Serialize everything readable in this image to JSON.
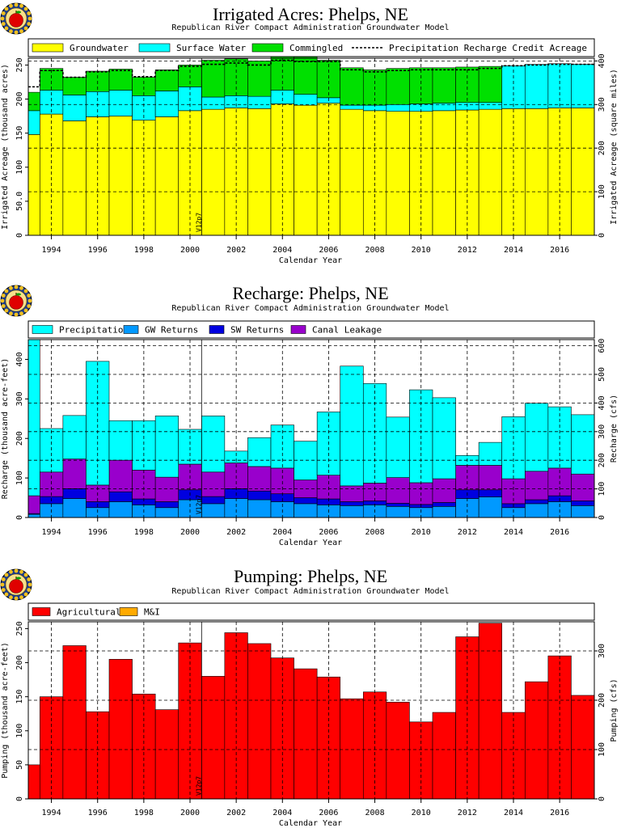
{
  "colors": {
    "groundwater": "#ffff00",
    "surface_water": "#00ffff",
    "commingled": "#00e000",
    "precipitation": "#00ffff",
    "gw_returns": "#0099ff",
    "sw_returns": "#0000e0",
    "canal_leakage": "#9900cc",
    "agricultural": "#ff0000",
    "mi": "#ffaa00"
  },
  "marker_label": "V12p7",
  "chart_data": [
    {
      "type": "area",
      "title": "Irrigated Acres: Phelps, NE",
      "subtitle": "Republican River Compact Administration Groundwater Model",
      "xlabel": "Calendar Year",
      "ylabel": "Irrigated Acreage (thousand acres)",
      "y2label": "Irrigated Acreage (square miles)",
      "xlim": [
        1993,
        2017.5
      ],
      "ylim": [
        0,
        260
      ],
      "y2lim": [
        0,
        406.25
      ],
      "xticks": [
        "1994",
        "1996",
        "1998",
        "2000",
        "2002",
        "2004",
        "2006",
        "2008",
        "2010",
        "2012",
        "2014",
        "2016"
      ],
      "yticks": [
        "0",
        "50.0",
        "100",
        "150",
        "200",
        "250"
      ],
      "y2ticks": [
        "0",
        "100",
        "200",
        "300",
        "400"
      ],
      "grid": true,
      "legend_position": "top",
      "stacked": true,
      "marker_year": 2000.5,
      "years": [
        1993,
        1994,
        1995,
        1996,
        1997,
        1998,
        1999,
        2000,
        2001,
        2002,
        2003,
        2004,
        2005,
        2006,
        2007,
        2008,
        2009,
        2010,
        2011,
        2012,
        2013,
        2014,
        2015,
        2016,
        2017
      ],
      "series": [
        {
          "name": "Groundwater",
          "key": "groundwater",
          "values": [
            148,
            178,
            168,
            174,
            175,
            169,
            174,
            183,
            185,
            187,
            186,
            193,
            191,
            194,
            185,
            183,
            182,
            182,
            183,
            184,
            185,
            186,
            186,
            187,
            187
          ]
        },
        {
          "name": "Surface Water",
          "key": "surface_water",
          "values": [
            35,
            35,
            38,
            37,
            38,
            36,
            38,
            35,
            18,
            18,
            18,
            20,
            16,
            8,
            6,
            8,
            10,
            11,
            11,
            11,
            10,
            63,
            65,
            65,
            64
          ]
        },
        {
          "name": "Commingled",
          "key": "commingled",
          "values": [
            27,
            32,
            26,
            30,
            31,
            27,
            31,
            32,
            54,
            54,
            52,
            52,
            55,
            55,
            55,
            52,
            53,
            53,
            52,
            52,
            53,
            0,
            0,
            0,
            0
          ]
        }
      ],
      "line": {
        "name": "Precipitation Recharge Credit Acreage",
        "values": [
          218,
          242,
          232,
          240,
          242,
          233,
          242,
          248,
          251,
          253,
          250,
          257,
          255,
          255,
          243,
          240,
          242,
          243,
          243,
          243,
          245,
          249,
          250,
          251,
          251
        ]
      }
    },
    {
      "type": "area",
      "title": "Recharge: Phelps, NE",
      "subtitle": "Republican River Compact Administration Groundwater Model",
      "xlabel": "Calendar Year",
      "ylabel": "Recharge (thousand acre-feet)",
      "y2label": "Recharge (cfs)",
      "xlim": [
        1993,
        2017.5
      ],
      "ylim": [
        0,
        450
      ],
      "y2lim": [
        0,
        621.5
      ],
      "xticks": [
        "1994",
        "1996",
        "1998",
        "2000",
        "2002",
        "2004",
        "2006",
        "2008",
        "2010",
        "2012",
        "2014",
        "2016"
      ],
      "yticks": [
        "0",
        "100",
        "200",
        "300",
        "400"
      ],
      "y2ticks": [
        "0",
        "100",
        "200",
        "300",
        "400",
        "500",
        "600"
      ],
      "grid": true,
      "legend_position": "top",
      "stacked": true,
      "marker_year": 2000.5,
      "years": [
        1993,
        1994,
        1995,
        1996,
        1997,
        1998,
        1999,
        2000,
        2001,
        2002,
        2003,
        2004,
        2005,
        2006,
        2007,
        2008,
        2009,
        2010,
        2011,
        2012,
        2013,
        2014,
        2015,
        2016,
        2017
      ],
      "series": [
        {
          "name": "GW Returns",
          "key": "gw_returns",
          "values": [
            8,
            35,
            48,
            25,
            40,
            32,
            25,
            45,
            35,
            48,
            45,
            40,
            35,
            32,
            30,
            32,
            28,
            25,
            28,
            48,
            52,
            25,
            35,
            40,
            30
          ]
        },
        {
          "name": "SW Returns",
          "key": "sw_returns",
          "values": [
            2,
            18,
            25,
            15,
            25,
            15,
            15,
            25,
            18,
            25,
            22,
            20,
            15,
            15,
            10,
            10,
            8,
            8,
            10,
            22,
            18,
            10,
            10,
            15,
            12
          ]
        },
        {
          "name": "Canal Leakage",
          "key": "canal_leakage",
          "values": [
            45,
            62,
            75,
            42,
            80,
            73,
            62,
            65,
            62,
            65,
            62,
            65,
            45,
            60,
            40,
            45,
            65,
            55,
            60,
            62,
            62,
            63,
            72,
            70,
            68
          ]
        },
        {
          "name": "Precipitation",
          "key": "precipitation",
          "values": [
            395,
            110,
            110,
            313,
            100,
            125,
            155,
            88,
            142,
            30,
            73,
            109,
            98,
            160,
            303,
            252,
            153,
            235,
            205,
            25,
            58,
            157,
            172,
            155,
            150
          ]
        }
      ]
    },
    {
      "type": "area",
      "title": "Pumping: Phelps, NE",
      "subtitle": "Republican River Compact Administration Groundwater Model",
      "xlabel": "Calendar Year",
      "ylabel": "Pumping (thousand acre-feet)",
      "y2label": "Pumping (cfs)",
      "xlim": [
        1993,
        2017.5
      ],
      "ylim": [
        0,
        260
      ],
      "y2lim": [
        0,
        359
      ],
      "xticks": [
        "1994",
        "1996",
        "1998",
        "2000",
        "2002",
        "2004",
        "2006",
        "2008",
        "2010",
        "2012",
        "2014",
        "2016"
      ],
      "yticks": [
        "0",
        "50",
        "100",
        "150",
        "200",
        "250"
      ],
      "y2ticks": [
        "0",
        "100",
        "200",
        "300"
      ],
      "grid": true,
      "legend_position": "top",
      "stacked": true,
      "marker_year": 2000.5,
      "years": [
        1993,
        1994,
        1995,
        1996,
        1997,
        1998,
        1999,
        2000,
        2001,
        2002,
        2003,
        2004,
        2005,
        2006,
        2007,
        2008,
        2009,
        2010,
        2011,
        2012,
        2013,
        2014,
        2015,
        2016,
        2017
      ],
      "series": [
        {
          "name": "Agricultural",
          "key": "agricultural",
          "values": [
            50,
            150,
            225,
            128,
            205,
            154,
            131,
            229,
            180,
            244,
            228,
            207,
            191,
            179,
            147,
            157,
            142,
            113,
            127,
            238,
            258,
            127,
            172,
            210,
            152
          ]
        },
        {
          "name": "M&I",
          "key": "mi",
          "values": [
            0,
            0,
            0,
            0,
            0,
            0,
            0,
            0,
            0,
            0,
            0,
            0,
            0,
            0,
            0,
            0,
            0,
            0,
            0,
            0,
            0,
            0,
            0,
            0,
            0
          ]
        }
      ]
    }
  ]
}
